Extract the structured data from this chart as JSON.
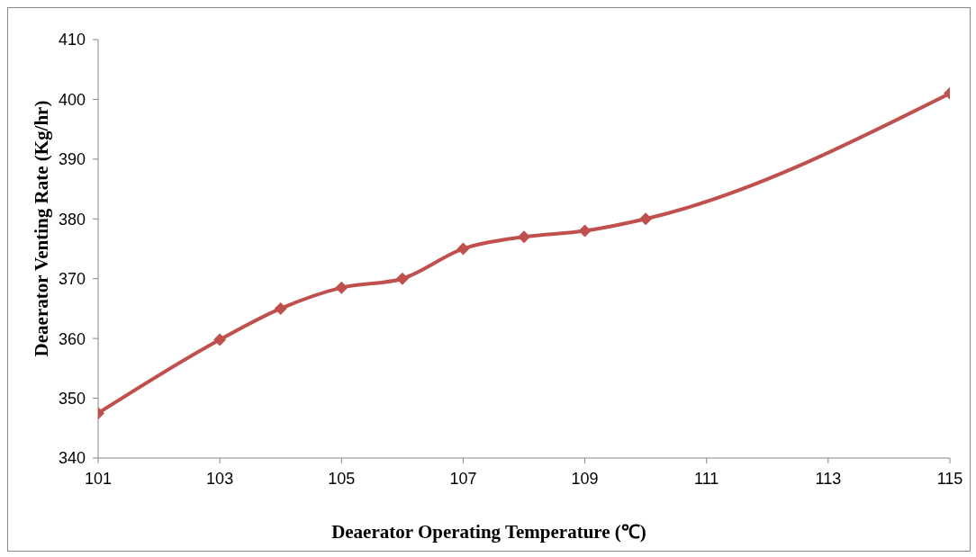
{
  "chart_data": {
    "type": "line",
    "xlabel": "Deaerator Operating Temperature (℃)",
    "ylabel": "Deaerator Venting Rate (Kg/hr)",
    "x": [
      101,
      103,
      104,
      105,
      106,
      107,
      108,
      109,
      110,
      115
    ],
    "series": [
      {
        "color": "#c0504d",
        "values": [
          347.5,
          359.8,
          365,
          368.5,
          370,
          375,
          377,
          378,
          380,
          401
        ]
      }
    ],
    "xlim": [
      101,
      115
    ],
    "xticks": [
      101,
      103,
      105,
      107,
      109,
      111,
      113,
      115
    ],
    "ylim": [
      340,
      410
    ],
    "yticks": [
      340,
      350,
      360,
      370,
      380,
      390,
      400,
      410
    ],
    "grid": false,
    "legend": false,
    "marker": "diamond",
    "line_style": "solid"
  }
}
